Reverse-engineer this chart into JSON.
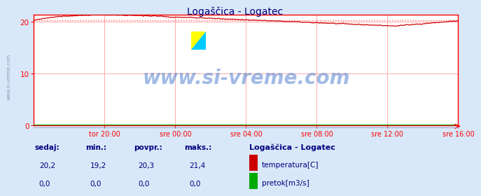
{
  "title": "Logaščica - Logatec",
  "title_color": "#000080",
  "bg_color": "#d8e8f8",
  "plot_bg_color": "#ffffff",
  "grid_color": "#ffaaaa",
  "border_color": "#ff0000",
  "x_tick_labels": [
    "tor 20:00",
    "sre 00:00",
    "sre 04:00",
    "sre 08:00",
    "sre 12:00",
    "sre 16:00"
  ],
  "x_tick_positions": [
    0.1667,
    0.3333,
    0.5,
    0.6667,
    0.8333,
    1.0
  ],
  "ylim": [
    0,
    21.4
  ],
  "yticks": [
    0,
    10,
    20
  ],
  "temp_avg": 20.3,
  "temp_color": "#cc0000",
  "flow_color": "#00aa00",
  "avg_line_color": "#ff6666",
  "watermark": "www.si-vreme.com",
  "watermark_color": "#4477cc",
  "legend_title": "Logaščica - Logatec",
  "legend_title_color": "#000080",
  "label_color": "#000080",
  "stats_headers": [
    "sedaj:",
    "min.:",
    "povpr.:",
    "maks.:"
  ],
  "stats_temp": [
    "20,2",
    "19,2",
    "20,3",
    "21,4"
  ],
  "stats_flow": [
    "0,0",
    "0,0",
    "0,0",
    "0,0"
  ],
  "legend_temp_label": "temperatura[C]",
  "legend_flow_label": "pretok[m3/s]",
  "n_points": 288
}
